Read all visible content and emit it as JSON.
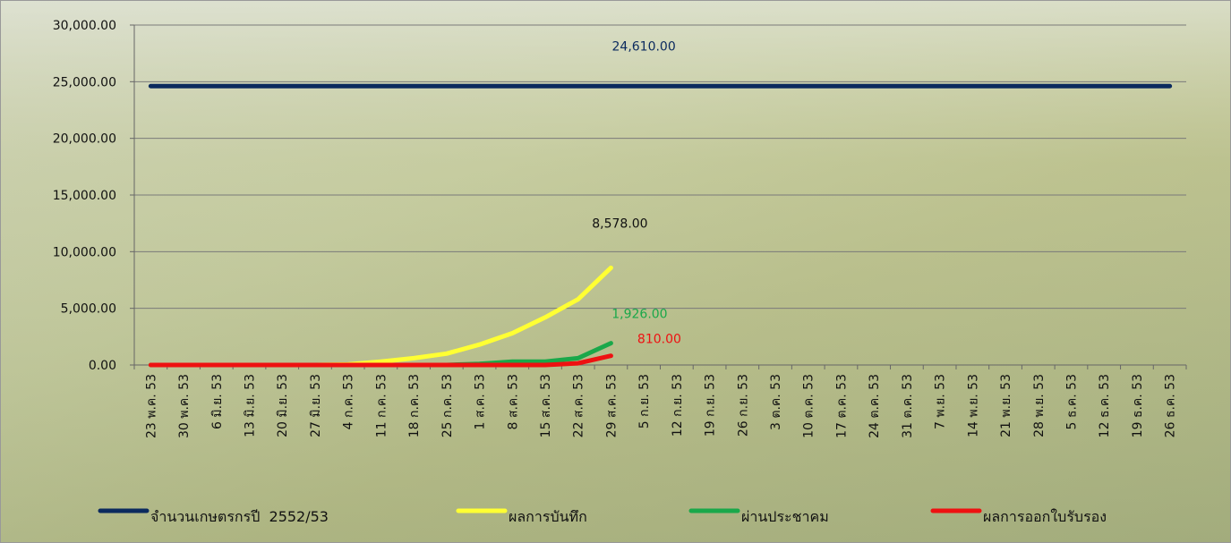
{
  "chart_data": {
    "type": "line",
    "categories": [
      "23 พ.ค. 53",
      "30 พ.ค. 53",
      "6 มิ.ย. 53",
      "13 มิ.ย. 53",
      "20 มิ.ย. 53",
      "27 มิ.ย. 53",
      "4 ก.ค. 53",
      "11 ก.ค. 53",
      "18 ก.ค. 53",
      "25 ก.ค. 53",
      "1 ส.ค. 53",
      "8 ส.ค. 53",
      "15 ส.ค. 53",
      "22 ส.ค. 53",
      "29 ส.ค. 53",
      "5 ก.ย. 53",
      "12 ก.ย. 53",
      "19 ก.ย. 53",
      "26 ก.ย. 53",
      "3 ต.ค. 53",
      "10 ต.ค. 53",
      "17 ต.ค. 53",
      "24 ต.ค. 53",
      "31 ต.ค. 53",
      "7 พ.ย. 53",
      "14 พ.ย. 53",
      "21 พ.ย. 53",
      "28 พ.ย. 53",
      "5 ธ.ค. 53",
      "12 ธ.ค. 53",
      "19 ธ.ค. 53",
      "26 ธ.ค. 53"
    ],
    "series": [
      {
        "name": "จำนวนเกษตรกรปี  2552/53",
        "color": "#0b2a5e",
        "values": [
          24610,
          24610,
          24610,
          24610,
          24610,
          24610,
          24610,
          24610,
          24610,
          24610,
          24610,
          24610,
          24610,
          24610,
          24610,
          24610,
          24610,
          24610,
          24610,
          24610,
          24610,
          24610,
          24610,
          24610,
          24610,
          24610,
          24610,
          24610,
          24610,
          24610,
          24610,
          24610
        ],
        "value_labels": [
          null,
          null,
          null,
          null,
          null,
          null,
          null,
          null,
          null,
          null,
          null,
          null,
          null,
          null,
          null,
          "24,610.00",
          null,
          null,
          null,
          null,
          null,
          null,
          null,
          null,
          null,
          null,
          null,
          null,
          null,
          null,
          null,
          null
        ]
      },
      {
        "name": "ผลการบันทึก",
        "color": "#ffff33",
        "values": [
          0,
          0,
          0,
          0,
          0,
          0,
          50,
          300,
          600,
          1000,
          1800,
          2800,
          4200,
          5800,
          8578,
          null,
          null,
          null,
          null,
          null,
          null,
          null,
          null,
          null,
          null,
          null,
          null,
          null,
          null,
          null,
          null,
          null
        ],
        "value_labels": [
          null,
          null,
          null,
          null,
          null,
          null,
          null,
          null,
          null,
          null,
          null,
          null,
          null,
          null,
          "8,578.00",
          null,
          null,
          null,
          null,
          null,
          null,
          null,
          null,
          null,
          null,
          null,
          null,
          null,
          null,
          null,
          null,
          null
        ]
      },
      {
        "name": "ผ่านประชาคม",
        "color": "#1aa84a",
        "values": [
          0,
          0,
          0,
          0,
          0,
          0,
          0,
          0,
          0,
          0,
          100,
          300,
          300,
          600,
          1926,
          null,
          null,
          null,
          null,
          null,
          null,
          null,
          null,
          null,
          null,
          null,
          null,
          null,
          null,
          null,
          null,
          null
        ],
        "value_labels": [
          null,
          null,
          null,
          null,
          null,
          null,
          null,
          null,
          null,
          null,
          null,
          null,
          null,
          null,
          "1,926.00",
          null,
          null,
          null,
          null,
          null,
          null,
          null,
          null,
          null,
          null,
          null,
          null,
          null,
          null,
          null,
          null,
          null
        ]
      },
      {
        "name": "ผลการออกใบรับรอง",
        "color": "#ee1111",
        "values": [
          0,
          0,
          0,
          0,
          0,
          0,
          0,
          0,
          0,
          0,
          0,
          0,
          0,
          150,
          810,
          null,
          null,
          null,
          null,
          null,
          null,
          null,
          null,
          null,
          null,
          null,
          null,
          null,
          null,
          null,
          null,
          null
        ],
        "value_labels": [
          null,
          null,
          null,
          null,
          null,
          null,
          null,
          null,
          null,
          null,
          null,
          null,
          null,
          null,
          "810.00",
          null,
          null,
          null,
          null,
          null,
          null,
          null,
          null,
          null,
          null,
          null,
          null,
          null,
          null,
          null,
          null,
          null
        ]
      }
    ],
    "ylim": [
      0,
      30000
    ],
    "yticks": [
      {
        "value": 0,
        "label": "0.00"
      },
      {
        "value": 5000,
        "label": "5,000.00"
      },
      {
        "value": 10000,
        "label": "10,000.00"
      },
      {
        "value": 15000,
        "label": "15,000.00"
      },
      {
        "value": 20000,
        "label": "20,000.00"
      },
      {
        "value": 25000,
        "label": "25,000.00"
      },
      {
        "value": 30000,
        "label": "30,000.00"
      }
    ],
    "grid": true,
    "legend": "bottom"
  }
}
